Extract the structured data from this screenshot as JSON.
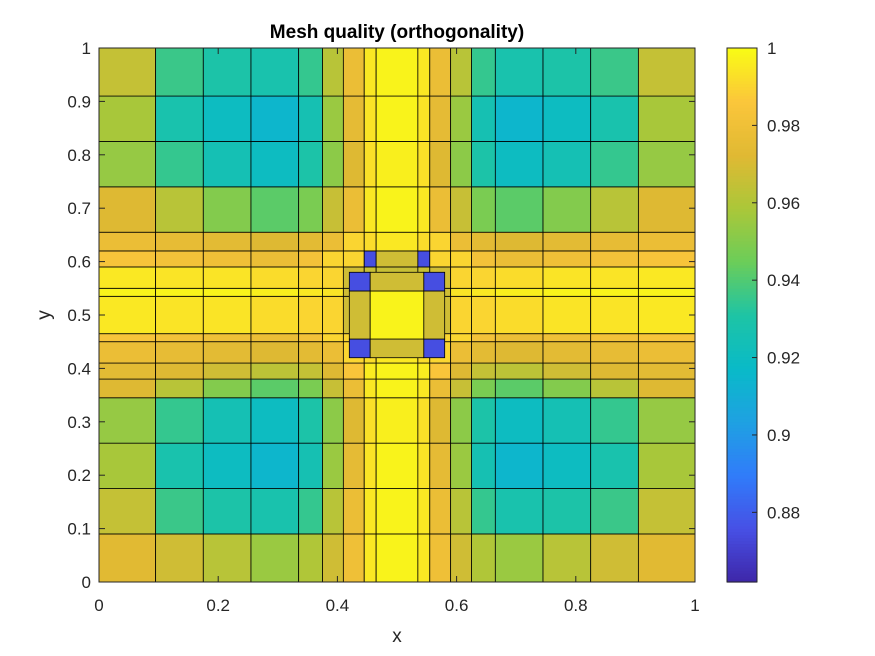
{
  "chart_data": {
    "type": "heatmap",
    "title": "Mesh quality (orthogonality)",
    "xlabel": "x",
    "ylabel": "y",
    "xlim": [
      0,
      1
    ],
    "ylim": [
      0,
      1
    ],
    "x_ticks": [
      0,
      0.2,
      0.4,
      0.6,
      0.8,
      1
    ],
    "x_tick_labels": [
      "0",
      "0.2",
      "0.4",
      "0.6",
      "0.8",
      "1"
    ],
    "y_ticks": [
      0,
      0.1,
      0.2,
      0.3,
      0.4,
      0.5,
      0.6,
      0.7,
      0.8,
      0.9,
      1
    ],
    "y_tick_labels": [
      "0",
      "0.1",
      "0.2",
      "0.3",
      "0.4",
      "0.5",
      "0.6",
      "0.7",
      "0.8",
      "0.9",
      "1"
    ],
    "colorbar": {
      "colormap": "parula",
      "range": [
        0.862,
        1.0
      ],
      "ticks": [
        0.88,
        0.9,
        0.92,
        0.94,
        0.96,
        0.98,
        1
      ],
      "tick_labels": [
        "0.88",
        "0.9",
        "0.92",
        "0.94",
        "0.96",
        "0.98",
        "1"
      ]
    },
    "grid": false,
    "outer_block": {
      "x_lines": [
        0,
        0.095,
        0.175,
        0.255,
        0.335,
        0.375,
        0.41,
        0.445,
        0.465,
        0.535,
        0.555,
        0.59,
        0.625,
        0.665,
        0.745,
        0.825,
        0.905,
        1
      ],
      "y_lines": [
        0,
        0.09,
        0.175,
        0.26,
        0.345,
        0.38,
        0.41,
        0.45,
        0.465,
        0.535,
        0.55,
        0.59,
        0.62,
        0.655,
        0.74,
        0.825,
        0.91,
        1
      ],
      "values": [
        [
          0.973,
          0.968,
          0.962,
          0.955,
          0.96,
          0.968,
          0.98,
          0.995,
          0.998,
          0.995,
          0.98,
          0.968,
          0.96,
          0.955,
          0.962,
          0.968,
          0.973
        ],
        [
          0.965,
          0.936,
          0.93,
          0.928,
          0.935,
          0.962,
          0.978,
          0.995,
          0.998,
          0.995,
          0.978,
          0.962,
          0.935,
          0.928,
          0.93,
          0.936,
          0.965
        ],
        [
          0.958,
          0.928,
          0.92,
          0.915,
          0.926,
          0.955,
          0.975,
          0.994,
          0.998,
          0.994,
          0.975,
          0.955,
          0.926,
          0.915,
          0.92,
          0.928,
          0.958
        ],
        [
          0.954,
          0.935,
          0.925,
          0.92,
          0.93,
          0.952,
          0.972,
          0.993,
          0.997,
          0.993,
          0.972,
          0.952,
          0.93,
          0.92,
          0.925,
          0.935,
          0.954
        ],
        [
          0.972,
          0.962,
          0.95,
          0.942,
          0.948,
          0.966,
          0.978,
          0.995,
          0.998,
          0.995,
          0.978,
          0.966,
          0.948,
          0.942,
          0.95,
          0.962,
          0.972
        ],
        [
          0.974,
          0.972,
          0.968,
          0.963,
          0.965,
          0.972,
          0.985,
          0.996,
          0.998,
          0.996,
          0.985,
          0.972,
          0.965,
          0.963,
          0.968,
          0.972,
          0.974
        ],
        [
          0.978,
          0.976,
          0.974,
          0.972,
          0.974,
          0.978,
          0.99,
          0.992,
          0.995,
          0.992,
          0.99,
          0.978,
          0.974,
          0.972,
          0.974,
          0.976,
          0.978
        ],
        [
          0.984,
          0.982,
          0.98,
          0.978,
          0.982,
          0.99,
          0.99,
          0.875,
          0.968,
          0.875,
          0.99,
          0.99,
          0.982,
          0.978,
          0.98,
          0.982,
          0.984
        ],
        [
          0.995,
          0.994,
          0.994,
          0.992,
          0.99,
          0.99,
          0.968,
          0.966,
          0.966,
          0.966,
          0.968,
          0.99,
          0.99,
          0.992,
          0.994,
          0.994,
          0.995
        ],
        [
          0.998,
          0.998,
          0.998,
          0.997,
          0.995,
          0.994,
          0.968,
          0.966,
          0.998,
          0.966,
          0.968,
          0.994,
          0.995,
          0.997,
          0.998,
          0.998,
          0.998
        ],
        [
          0.995,
          0.994,
          0.994,
          0.992,
          0.99,
          0.99,
          0.968,
          0.966,
          0.966,
          0.966,
          0.968,
          0.99,
          0.99,
          0.992,
          0.994,
          0.994,
          0.995
        ],
        [
          0.984,
          0.982,
          0.98,
          0.978,
          0.982,
          0.99,
          0.99,
          0.875,
          0.968,
          0.875,
          0.99,
          0.99,
          0.982,
          0.978,
          0.98,
          0.982,
          0.984
        ],
        [
          0.978,
          0.976,
          0.974,
          0.972,
          0.974,
          0.978,
          0.99,
          0.992,
          0.995,
          0.992,
          0.99,
          0.978,
          0.974,
          0.972,
          0.974,
          0.976,
          0.978
        ],
        [
          0.972,
          0.962,
          0.95,
          0.942,
          0.948,
          0.966,
          0.978,
          0.995,
          0.998,
          0.995,
          0.978,
          0.966,
          0.948,
          0.942,
          0.95,
          0.962,
          0.972
        ],
        [
          0.954,
          0.935,
          0.925,
          0.92,
          0.93,
          0.952,
          0.972,
          0.993,
          0.997,
          0.993,
          0.972,
          0.952,
          0.93,
          0.92,
          0.925,
          0.935,
          0.954
        ],
        [
          0.958,
          0.928,
          0.92,
          0.915,
          0.926,
          0.955,
          0.975,
          0.994,
          0.998,
          0.994,
          0.975,
          0.955,
          0.926,
          0.915,
          0.92,
          0.928,
          0.958
        ],
        [
          0.965,
          0.936,
          0.93,
          0.928,
          0.935,
          0.962,
          0.978,
          0.995,
          0.998,
          0.995,
          0.978,
          0.962,
          0.935,
          0.928,
          0.93,
          0.936,
          0.965
        ]
      ]
    },
    "center_block": {
      "x_lines": [
        0.42,
        0.455,
        0.545,
        0.58
      ],
      "y_lines": [
        0.42,
        0.455,
        0.545,
        0.58
      ],
      "values": [
        [
          0.875,
          0.968,
          0.875
        ],
        [
          0.968,
          0.998,
          0.968
        ],
        [
          0.875,
          0.968,
          0.875
        ]
      ]
    }
  }
}
